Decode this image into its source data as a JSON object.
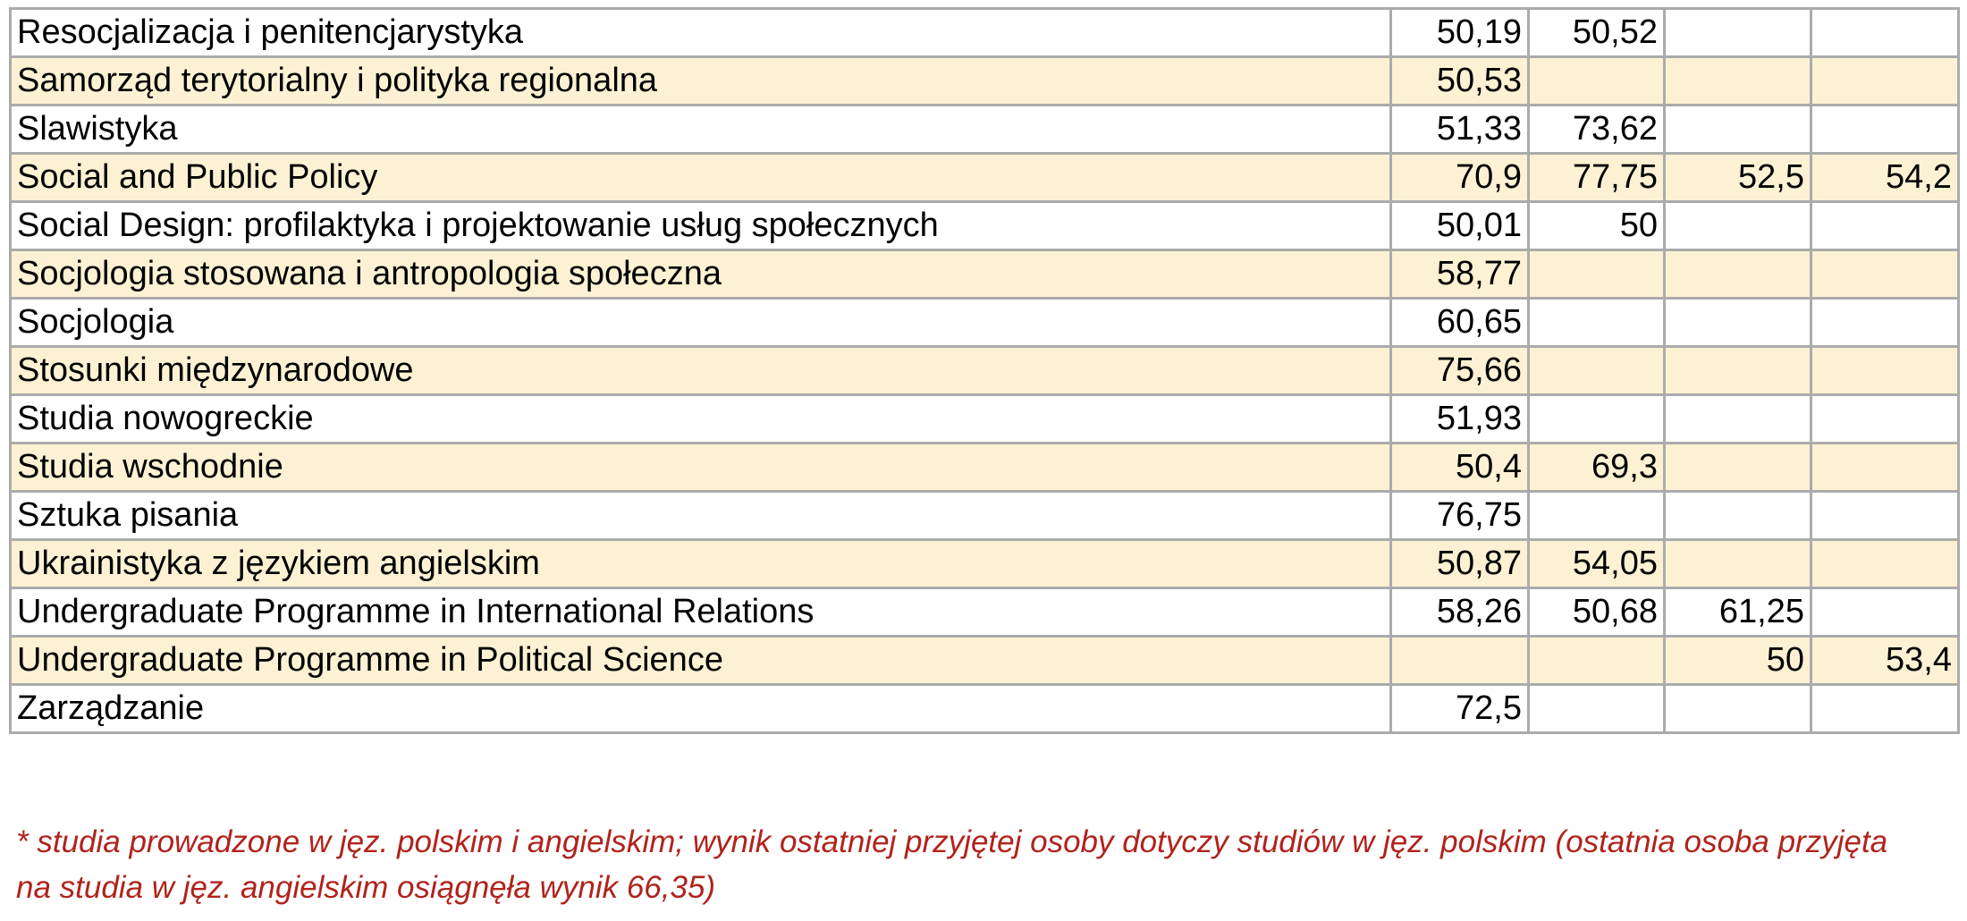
{
  "colors": {
    "shaded_row": "#fcf2d3",
    "border": "#ababab",
    "footnote_text": "#b0231c"
  },
  "table": {
    "rows": [
      {
        "name": "Resocjalizacja i penitencjarystyka",
        "values": [
          "50,19",
          "50,52",
          "",
          ""
        ]
      },
      {
        "name": "Samorząd terytorialny i polityka regionalna",
        "values": [
          "50,53",
          "",
          "",
          ""
        ]
      },
      {
        "name": "Slawistyka",
        "values": [
          "51,33",
          "73,62",
          "",
          ""
        ]
      },
      {
        "name": "Social and Public Policy",
        "values": [
          "70,9",
          "77,75",
          "52,5",
          "54,2"
        ]
      },
      {
        "name": "Social Design: profilaktyka i projektowanie usług społecznych",
        "values": [
          "50,01",
          "50",
          "",
          ""
        ]
      },
      {
        "name": "Socjologia stosowana i antropologia społeczna",
        "values": [
          "58,77",
          "",
          "",
          ""
        ]
      },
      {
        "name": "Socjologia",
        "values": [
          "60,65",
          "",
          "",
          ""
        ]
      },
      {
        "name": "Stosunki międzynarodowe",
        "values": [
          "75,66",
          "",
          "",
          ""
        ]
      },
      {
        "name": "Studia nowogreckie",
        "values": [
          "51,93",
          "",
          "",
          ""
        ]
      },
      {
        "name": "Studia wschodnie",
        "values": [
          "50,4",
          "69,3",
          "",
          ""
        ]
      },
      {
        "name": "Sztuka pisania",
        "values": [
          "76,75",
          "",
          "",
          ""
        ]
      },
      {
        "name": "Ukrainistyka z językiem angielskim",
        "values": [
          "50,87",
          "54,05",
          "",
          ""
        ]
      },
      {
        "name": "Undergraduate Programme in International Relations",
        "values": [
          "58,26",
          "50,68",
          "61,25",
          ""
        ]
      },
      {
        "name": "Undergraduate Programme in Political Science",
        "values": [
          "",
          "",
          "50",
          "53,4"
        ]
      },
      {
        "name": "Zarządzanie",
        "values": [
          "72,5",
          "",
          "",
          ""
        ]
      }
    ]
  },
  "footnote": {
    "line1": "* studia prowadzone w jęz. polskim i angielskim; wynik ostatniej przyjętej osoby dotyczy studiów w jęz. polskim (ostatnia osoba przyjęta",
    "line2": "na studia w jęz. angielskim osiągnęła wynik 66,35)"
  }
}
